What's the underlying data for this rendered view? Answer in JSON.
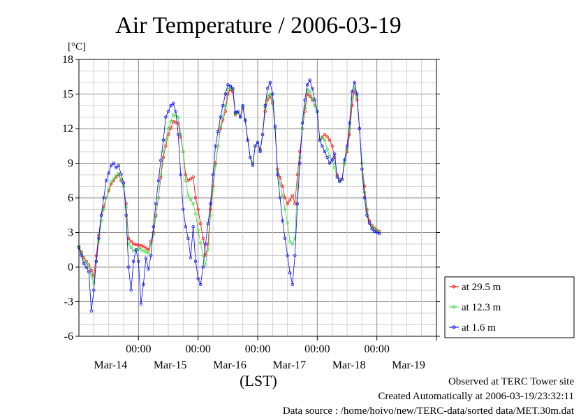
{
  "chart_data": {
    "type": "line",
    "title": "Air Temperature / 2006-03-19",
    "ylabel": "[°C]",
    "xlabel": "(LST)",
    "ylim": [
      -6,
      18
    ],
    "yticks": [
      18,
      15,
      12,
      9,
      6,
      3,
      0,
      -3,
      -6
    ],
    "xlim_hours": [
      0,
      144
    ],
    "xticks": [
      {
        "time": "00:00",
        "date": "Mar-14",
        "hour": 24
      },
      {
        "time": "00:00",
        "date": "Mar-15",
        "hour": 48
      },
      {
        "time": "00:00",
        "date": "Mar-16",
        "hour": 72
      },
      {
        "time": "00:00",
        "date": "Mar-17",
        "hour": 96
      },
      {
        "time": "00:00",
        "date": "Mar-18",
        "hour": 120
      },
      {
        "time": "00:00",
        "date": "Mar-19",
        "hour": 144
      }
    ],
    "grid": true,
    "legend_position": "right",
    "series": [
      {
        "name": "at 29.5 m",
        "color": "#ff0000",
        "points": [
          [
            0,
            1.8
          ],
          [
            2,
            0.8
          ],
          [
            4,
            0.2
          ],
          [
            6,
            -0.8
          ],
          [
            7,
            1.0
          ],
          [
            9,
            4.5
          ],
          [
            11,
            6.0
          ],
          [
            13,
            7.2
          ],
          [
            15,
            7.8
          ],
          [
            16,
            8.0
          ],
          [
            18,
            7.0
          ],
          [
            19,
            5.5
          ],
          [
            20,
            2.5
          ],
          [
            22,
            2.0
          ],
          [
            24,
            1.9
          ],
          [
            26,
            1.8
          ],
          [
            28,
            1.5
          ],
          [
            30,
            3.0
          ],
          [
            32,
            6.0
          ],
          [
            34,
            9.5
          ],
          [
            36,
            11.5
          ],
          [
            38,
            12.6
          ],
          [
            40,
            12.5
          ],
          [
            42,
            10.0
          ],
          [
            43,
            8.0
          ],
          [
            44,
            7.5
          ],
          [
            46,
            7.8
          ],
          [
            47,
            6.0
          ],
          [
            48,
            5.0
          ],
          [
            50,
            2.5
          ],
          [
            51,
            1.0
          ],
          [
            52,
            2.0
          ],
          [
            53,
            5.0
          ],
          [
            55,
            9.0
          ],
          [
            57,
            12.0
          ],
          [
            59,
            13.5
          ],
          [
            60,
            15.0
          ],
          [
            61,
            15.4
          ],
          [
            62,
            15.2
          ],
          [
            63,
            13.2
          ],
          [
            64,
            13.4
          ],
          [
            65,
            13.0
          ],
          [
            66,
            13.8
          ],
          [
            67,
            12.8
          ],
          [
            68,
            11.0
          ],
          [
            69,
            9.5
          ],
          [
            70,
            9.0
          ],
          [
            71,
            10.5
          ],
          [
            72,
            10.8
          ],
          [
            73,
            10.2
          ],
          [
            74,
            11.5
          ],
          [
            75,
            13.5
          ],
          [
            76,
            14.5
          ],
          [
            77,
            14.8
          ],
          [
            78,
            14.2
          ],
          [
            79,
            12.0
          ],
          [
            80,
            8.5
          ],
          [
            82,
            7.0
          ],
          [
            83,
            6.0
          ],
          [
            84,
            5.5
          ],
          [
            85,
            5.8
          ],
          [
            86,
            6.2
          ],
          [
            87,
            5.5
          ],
          [
            88,
            8.0
          ],
          [
            90,
            12.0
          ],
          [
            91,
            13.5
          ],
          [
            92,
            15.0
          ],
          [
            93,
            14.8
          ],
          [
            94,
            14.5
          ],
          [
            95,
            14.0
          ],
          [
            96,
            13.5
          ],
          [
            97,
            11.0
          ],
          [
            98,
            11.2
          ],
          [
            99,
            11.5
          ],
          [
            100,
            11.3
          ],
          [
            101,
            11.0
          ],
          [
            102,
            10.5
          ],
          [
            103,
            9.5
          ],
          [
            104,
            8.0
          ],
          [
            105,
            7.6
          ],
          [
            106,
            7.6
          ],
          [
            107,
            9.0
          ],
          [
            108,
            10.0
          ],
          [
            109,
            11.5
          ],
          [
            110,
            14.0
          ],
          [
            111,
            15.3
          ],
          [
            112,
            14.5
          ],
          [
            113,
            12.0
          ],
          [
            114,
            9.0
          ],
          [
            115,
            7.0
          ],
          [
            116,
            5.0
          ],
          [
            117,
            4.0
          ],
          [
            118,
            3.6
          ],
          [
            119,
            3.4
          ],
          [
            120,
            3.2
          ],
          [
            121,
            3.1
          ]
        ]
      },
      {
        "name": "at 12.3 m",
        "color": "#33dd33",
        "points": [
          [
            0,
            1.8
          ],
          [
            2,
            0.6
          ],
          [
            4,
            0.0
          ],
          [
            6,
            -1.4
          ],
          [
            7,
            0.5
          ],
          [
            9,
            4.0
          ],
          [
            11,
            6.0
          ],
          [
            13,
            7.4
          ],
          [
            15,
            7.9
          ],
          [
            16,
            8.1
          ],
          [
            18,
            7.0
          ],
          [
            19,
            5.2
          ],
          [
            20,
            2.0
          ],
          [
            22,
            1.4
          ],
          [
            24,
            1.6
          ],
          [
            26,
            1.4
          ],
          [
            28,
            1.2
          ],
          [
            30,
            2.8
          ],
          [
            32,
            6.0
          ],
          [
            34,
            10.0
          ],
          [
            36,
            12.0
          ],
          [
            38,
            13.2
          ],
          [
            40,
            13.0
          ],
          [
            42,
            10.0
          ],
          [
            43,
            7.5
          ],
          [
            44,
            6.2
          ],
          [
            46,
            5.5
          ],
          [
            47,
            4.6
          ],
          [
            48,
            3.2
          ],
          [
            50,
            1.0
          ],
          [
            51,
            0.2
          ],
          [
            52,
            1.5
          ],
          [
            53,
            4.5
          ],
          [
            55,
            8.8
          ],
          [
            57,
            12.2
          ],
          [
            59,
            14.0
          ],
          [
            60,
            15.4
          ],
          [
            61,
            15.6
          ],
          [
            62,
            15.4
          ],
          [
            63,
            13.3
          ],
          [
            64,
            13.4
          ],
          [
            65,
            13.0
          ],
          [
            66,
            13.9
          ],
          [
            67,
            12.8
          ],
          [
            68,
            11.0
          ],
          [
            69,
            9.5
          ],
          [
            70,
            9.0
          ],
          [
            71,
            10.5
          ],
          [
            72,
            10.8
          ],
          [
            73,
            10.1
          ],
          [
            74,
            11.5
          ],
          [
            75,
            13.8
          ],
          [
            76,
            14.8
          ],
          [
            77,
            15.0
          ],
          [
            78,
            14.4
          ],
          [
            79,
            12.0
          ],
          [
            80,
            8.3
          ],
          [
            82,
            6.2
          ],
          [
            83,
            5.0
          ],
          [
            84,
            3.8
          ],
          [
            85,
            2.2
          ],
          [
            86,
            2.0
          ],
          [
            87,
            2.5
          ],
          [
            88,
            7.0
          ],
          [
            90,
            12.0
          ],
          [
            91,
            13.8
          ],
          [
            92,
            15.4
          ],
          [
            93,
            15.2
          ],
          [
            94,
            14.6
          ],
          [
            95,
            14.0
          ],
          [
            96,
            13.5
          ],
          [
            97,
            11.0
          ],
          [
            98,
            11.3
          ],
          [
            99,
            11.0
          ],
          [
            100,
            10.2
          ],
          [
            101,
            9.6
          ],
          [
            102,
            9.2
          ],
          [
            103,
            8.6
          ],
          [
            104,
            7.8
          ],
          [
            105,
            7.5
          ],
          [
            106,
            7.6
          ],
          [
            107,
            9.0
          ],
          [
            108,
            10.2
          ],
          [
            109,
            12.0
          ],
          [
            110,
            14.6
          ],
          [
            111,
            15.6
          ],
          [
            112,
            14.8
          ],
          [
            113,
            12.0
          ],
          [
            114,
            9.0
          ],
          [
            115,
            6.5
          ],
          [
            116,
            4.8
          ],
          [
            117,
            3.8
          ],
          [
            118,
            3.5
          ],
          [
            119,
            3.3
          ],
          [
            120,
            3.1
          ],
          [
            121,
            3.0
          ]
        ]
      },
      {
        "name": "at 1.6 m",
        "color": "#0000ff",
        "points": [
          [
            0,
            1.7
          ],
          [
            2,
            0.3
          ],
          [
            4,
            -0.4
          ],
          [
            5,
            -3.8
          ],
          [
            6,
            -2.0
          ],
          [
            7,
            0.5
          ],
          [
            9,
            4.5
          ],
          [
            11,
            7.5
          ],
          [
            13,
            8.8
          ],
          [
            14,
            9.0
          ],
          [
            15,
            8.6
          ],
          [
            16,
            8.8
          ],
          [
            18,
            7.3
          ],
          [
            19,
            4.5
          ],
          [
            20,
            0.0
          ],
          [
            21,
            -2.0
          ],
          [
            22,
            0.5
          ],
          [
            23,
            1.5
          ],
          [
            24,
            0.5
          ],
          [
            25,
            -3.2
          ],
          [
            26,
            -1.5
          ],
          [
            27,
            0.8
          ],
          [
            28,
            -0.2
          ],
          [
            29,
            1.0
          ],
          [
            30,
            3.5
          ],
          [
            32,
            7.5
          ],
          [
            34,
            11.0
          ],
          [
            35,
            13.0
          ],
          [
            37,
            14.0
          ],
          [
            38,
            14.2
          ],
          [
            39,
            13.5
          ],
          [
            40,
            11.5
          ],
          [
            41,
            8.0
          ],
          [
            42,
            5.0
          ],
          [
            43,
            3.5
          ],
          [
            44,
            2.5
          ],
          [
            45,
            0.8
          ],
          [
            46,
            3.5
          ],
          [
            47,
            0.5
          ],
          [
            48,
            -1.0
          ],
          [
            49,
            -1.5
          ],
          [
            50,
            0.0
          ],
          [
            51,
            2.0
          ],
          [
            53,
            5.5
          ],
          [
            55,
            10.5
          ],
          [
            57,
            13.0
          ],
          [
            59,
            15.0
          ],
          [
            60,
            15.8
          ],
          [
            61,
            15.7
          ],
          [
            62,
            15.5
          ],
          [
            63,
            13.4
          ],
          [
            64,
            13.5
          ],
          [
            65,
            13.0
          ],
          [
            66,
            14.0
          ],
          [
            67,
            12.7
          ],
          [
            68,
            11.0
          ],
          [
            69,
            9.5
          ],
          [
            70,
            8.8
          ],
          [
            71,
            10.5
          ],
          [
            72,
            10.8
          ],
          [
            73,
            10.0
          ],
          [
            74,
            11.5
          ],
          [
            75,
            14.0
          ],
          [
            76,
            15.5
          ],
          [
            77,
            16.0
          ],
          [
            78,
            15.0
          ],
          [
            79,
            12.2
          ],
          [
            80,
            8.0
          ],
          [
            81,
            6.0
          ],
          [
            82,
            4.0
          ],
          [
            83,
            2.5
          ],
          [
            84,
            1.0
          ],
          [
            85,
            -0.5
          ],
          [
            86,
            -1.5
          ],
          [
            87,
            1.0
          ],
          [
            88,
            5.5
          ],
          [
            90,
            12.5
          ],
          [
            91,
            14.5
          ],
          [
            92,
            15.8
          ],
          [
            93,
            16.2
          ],
          [
            94,
            15.5
          ],
          [
            95,
            14.5
          ],
          [
            96,
            13.5
          ],
          [
            97,
            11.0
          ],
          [
            98,
            10.5
          ],
          [
            99,
            10.0
          ],
          [
            100,
            9.5
          ],
          [
            101,
            9.0
          ],
          [
            102,
            9.3
          ],
          [
            103,
            9.8
          ],
          [
            104,
            7.8
          ],
          [
            105,
            7.4
          ],
          [
            106,
            7.6
          ],
          [
            107,
            9.3
          ],
          [
            108,
            10.5
          ],
          [
            109,
            12.5
          ],
          [
            110,
            15.2
          ],
          [
            111,
            16.0
          ],
          [
            112,
            15.0
          ],
          [
            113,
            12.0
          ],
          [
            114,
            8.5
          ],
          [
            115,
            6.0
          ],
          [
            116,
            4.5
          ],
          [
            117,
            3.8
          ],
          [
            118,
            3.3
          ],
          [
            119,
            3.1
          ],
          [
            120,
            3.0
          ],
          [
            121,
            2.9
          ]
        ]
      }
    ]
  },
  "footer": {
    "line1": "Observed at TERC Tower site",
    "line2": "Created Automatically at 2006-03-19/23:32:11",
    "line3": "Data source : /home/hoivo/new/TERC-data/sorted  data/MET.30m.dat"
  }
}
